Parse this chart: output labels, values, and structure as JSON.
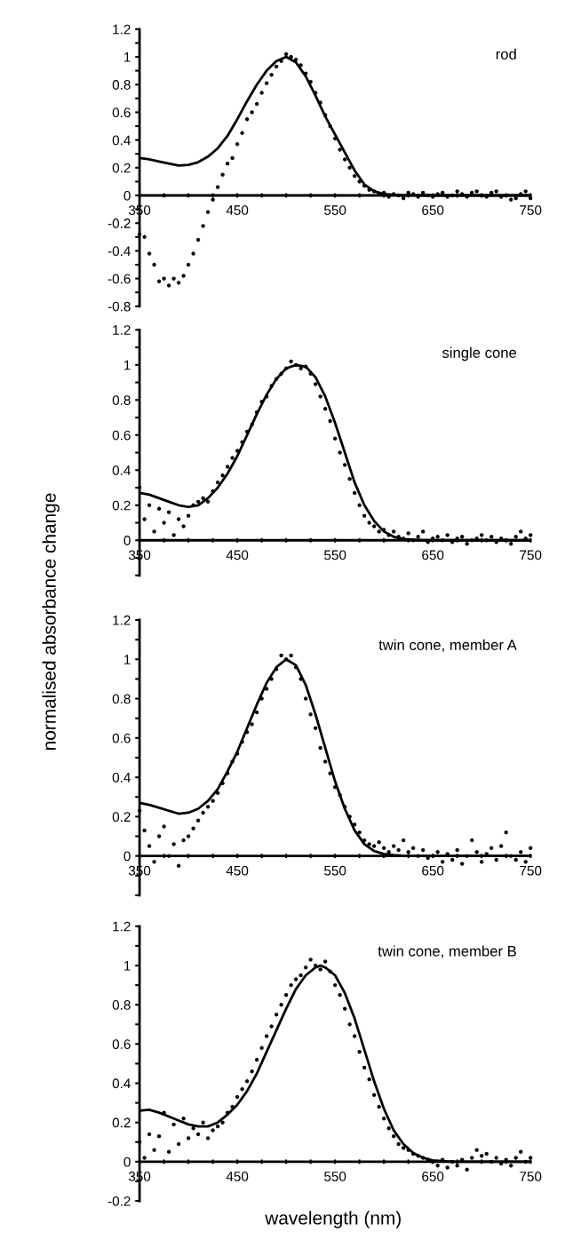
{
  "chart_data": [
    {
      "type": "scatter",
      "annotations": [
        "rod"
      ],
      "xlim": [
        350,
        750
      ],
      "ylim": [
        -0.8,
        1.2
      ],
      "xticks": [
        350,
        {
          "value": 375,
          "label": null
        },
        {
          "value": 400,
          "label": null
        },
        {
          "value": 425,
          "label": null
        },
        450,
        {
          "value": 475,
          "label": null
        },
        {
          "value": 500,
          "label": null
        },
        {
          "value": 525,
          "label": null
        },
        550,
        {
          "value": 575,
          "label": null
        },
        {
          "value": 600,
          "label": null
        },
        {
          "value": 625,
          "label": null
        },
        650,
        {
          "value": 675,
          "label": null
        },
        {
          "value": 700,
          "label": null
        },
        {
          "value": 725,
          "label": null
        },
        750
      ],
      "yticks": [
        -0.8,
        {
          "value": -0.7,
          "label": null
        },
        -0.6,
        {
          "value": -0.5,
          "label": null
        },
        -0.4,
        {
          "value": -0.3,
          "label": null
        },
        -0.2,
        {
          "value": -0.1,
          "label": null
        },
        0,
        {
          "value": 0.1,
          "label": null
        },
        0.2,
        {
          "value": 0.3,
          "label": null
        },
        0.4,
        {
          "value": 0.5,
          "label": null
        },
        0.6,
        {
          "value": 0.7,
          "label": null
        },
        0.8,
        {
          "value": 0.9,
          "label": null
        },
        1,
        {
          "value": 1.1,
          "label": null
        },
        1.2
      ],
      "series": [
        {
          "type": "scatter",
          "marker": "circle",
          "color": "#000000",
          "x": [
            350,
            355,
            360,
            365,
            370,
            375,
            380,
            385,
            390,
            395,
            400,
            405,
            410,
            415,
            420,
            425,
            430,
            435,
            440,
            445,
            450,
            455,
            460,
            465,
            470,
            475,
            480,
            485,
            490,
            495,
            500,
            505,
            510,
            515,
            520,
            525,
            530,
            535,
            540,
            545,
            550,
            555,
            560,
            565,
            570,
            575,
            580,
            585,
            590,
            595,
            600,
            605,
            610,
            615,
            620,
            625,
            630,
            635,
            640,
            645,
            650,
            655,
            660,
            665,
            670,
            675,
            680,
            685,
            690,
            695,
            700,
            705,
            710,
            715,
            720,
            725,
            730,
            735,
            740,
            745,
            750
          ],
          "values": [
            -0.28,
            -0.3,
            -0.42,
            -0.5,
            -0.62,
            -0.6,
            -0.65,
            -0.6,
            -0.63,
            -0.58,
            -0.5,
            -0.42,
            -0.32,
            -0.22,
            -0.12,
            -0.03,
            0.06,
            0.15,
            0.23,
            0.27,
            0.37,
            0.45,
            0.55,
            0.6,
            0.66,
            0.74,
            0.81,
            0.87,
            0.93,
            0.97,
            1.02,
            1.0,
            0.98,
            0.94,
            0.88,
            0.82,
            0.74,
            0.67,
            0.58,
            0.5,
            0.41,
            0.33,
            0.26,
            0.2,
            0.14,
            0.1,
            0.07,
            0.04,
            0.03,
            0.01,
            0.02,
            -0.01,
            0.01,
            0.0,
            -0.02,
            0.02,
            0.01,
            -0.01,
            0.02,
            0.0,
            -0.01,
            0.01,
            0.02,
            -0.01,
            0.0,
            0.03,
            0.01,
            -0.01,
            0.02,
            0.03,
            0.0,
            -0.01,
            0.02,
            0.03,
            -0.01,
            0.0,
            -0.03,
            -0.02,
            0.01,
            0.03,
            -0.02
          ]
        },
        {
          "type": "line",
          "color": "#000000",
          "x": [
            350,
            360,
            370,
            380,
            390,
            400,
            410,
            420,
            430,
            440,
            450,
            460,
            470,
            480,
            490,
            500,
            510,
            520,
            530,
            540,
            550,
            560,
            570,
            580,
            590,
            600,
            610,
            620,
            650,
            700,
            750
          ],
          "values": [
            0.27,
            0.26,
            0.245,
            0.23,
            0.215,
            0.22,
            0.24,
            0.28,
            0.34,
            0.43,
            0.55,
            0.68,
            0.8,
            0.9,
            0.97,
            1.0,
            0.96,
            0.86,
            0.72,
            0.57,
            0.44,
            0.31,
            0.18,
            0.08,
            0.03,
            0.01,
            0.004,
            0.001,
            0,
            0,
            0
          ]
        }
      ]
    },
    {
      "type": "scatter",
      "annotations": [
        "single cone"
      ],
      "xlim": [
        350,
        750
      ],
      "ylim": [
        -0.2,
        1.2
      ],
      "xticks": [
        350,
        {
          "value": 375,
          "label": null
        },
        {
          "value": 400,
          "label": null
        },
        {
          "value": 425,
          "label": null
        },
        450,
        {
          "value": 475,
          "label": null
        },
        {
          "value": 500,
          "label": null
        },
        {
          "value": 525,
          "label": null
        },
        550,
        {
          "value": 575,
          "label": null
        },
        {
          "value": 600,
          "label": null
        },
        {
          "value": 625,
          "label": null
        },
        650,
        {
          "value": 675,
          "label": null
        },
        {
          "value": 700,
          "label": null
        },
        {
          "value": 725,
          "label": null
        },
        750
      ],
      "yticks": [
        {
          "value": -0.2,
          "label": null
        },
        {
          "value": -0.1,
          "label": null
        },
        0,
        {
          "value": 0.1,
          "label": null
        },
        0.2,
        {
          "value": 0.3,
          "label": null
        },
        0.4,
        {
          "value": 0.5,
          "label": null
        },
        0.6,
        {
          "value": 0.7,
          "label": null
        },
        0.8,
        {
          "value": 0.9,
          "label": null
        },
        1,
        {
          "value": 1.1,
          "label": null
        },
        1.2
      ],
      "series": [
        {
          "type": "scatter",
          "marker": "circle",
          "color": "#000000",
          "x": [
            350,
            355,
            360,
            365,
            370,
            375,
            380,
            385,
            390,
            395,
            400,
            405,
            410,
            415,
            420,
            425,
            430,
            435,
            440,
            445,
            450,
            455,
            460,
            465,
            470,
            475,
            480,
            485,
            490,
            495,
            500,
            505,
            510,
            515,
            520,
            525,
            530,
            535,
            540,
            545,
            550,
            555,
            560,
            565,
            570,
            575,
            580,
            585,
            590,
            595,
            600,
            605,
            610,
            615,
            620,
            625,
            630,
            635,
            640,
            645,
            650,
            655,
            660,
            665,
            670,
            675,
            680,
            685,
            690,
            695,
            700,
            705,
            710,
            715,
            720,
            725,
            730,
            735,
            740,
            745,
            750
          ],
          "values": [
            0.3,
            0.12,
            0.2,
            0.05,
            0.18,
            0.1,
            0.16,
            0.03,
            0.12,
            0.08,
            0.14,
            0.2,
            0.22,
            0.24,
            0.22,
            0.28,
            0.33,
            0.37,
            0.42,
            0.47,
            0.51,
            0.56,
            0.62,
            0.66,
            0.73,
            0.79,
            0.82,
            0.88,
            0.92,
            0.95,
            0.98,
            1.02,
            1.0,
            0.98,
            0.99,
            0.95,
            0.89,
            0.82,
            0.75,
            0.68,
            0.58,
            0.5,
            0.43,
            0.35,
            0.27,
            0.2,
            0.14,
            0.1,
            0.08,
            0.05,
            0.06,
            0.03,
            0.05,
            0.02,
            0.01,
            0.04,
            0.0,
            0.02,
            0.05,
            -0.01,
            0.01,
            0.02,
            0.0,
            0.03,
            -0.01,
            0.01,
            0.02,
            -0.02,
            0.0,
            0.01,
            0.03,
            0.0,
            0.02,
            -0.01,
            0.01,
            0.0,
            -0.02,
            0.02,
            0.05,
            0.01,
            0.03
          ]
        },
        {
          "type": "line",
          "color": "#000000",
          "x": [
            350,
            360,
            370,
            380,
            390,
            400,
            410,
            420,
            430,
            440,
            450,
            460,
            470,
            480,
            490,
            500,
            510,
            520,
            530,
            540,
            550,
            560,
            570,
            580,
            590,
            600,
            610,
            620,
            640,
            700,
            750
          ],
          "values": [
            0.27,
            0.26,
            0.24,
            0.22,
            0.2,
            0.19,
            0.2,
            0.24,
            0.3,
            0.38,
            0.48,
            0.6,
            0.72,
            0.83,
            0.92,
            0.98,
            1.0,
            0.99,
            0.93,
            0.82,
            0.67,
            0.5,
            0.33,
            0.2,
            0.11,
            0.05,
            0.02,
            0.007,
            0,
            0,
            0
          ]
        }
      ]
    },
    {
      "type": "scatter",
      "ylabel": "normalised absorbance change",
      "annotations": [
        "twin cone, member A"
      ],
      "xlim": [
        350,
        750
      ],
      "ylim": [
        -0.2,
        1.2
      ],
      "xticks": [
        350,
        {
          "value": 375,
          "label": null
        },
        {
          "value": 400,
          "label": null
        },
        {
          "value": 425,
          "label": null
        },
        450,
        {
          "value": 475,
          "label": null
        },
        {
          "value": 500,
          "label": null
        },
        {
          "value": 525,
          "label": null
        },
        550,
        {
          "value": 575,
          "label": null
        },
        {
          "value": 600,
          "label": null
        },
        {
          "value": 625,
          "label": null
        },
        650,
        {
          "value": 675,
          "label": null
        },
        {
          "value": 700,
          "label": null
        },
        {
          "value": 725,
          "label": null
        },
        750
      ],
      "yticks": [
        {
          "value": -0.2,
          "label": null
        },
        {
          "value": -0.1,
          "label": null
        },
        0,
        {
          "value": 0.1,
          "label": null
        },
        0.2,
        {
          "value": 0.3,
          "label": null
        },
        0.4,
        {
          "value": 0.5,
          "label": null
        },
        0.6,
        {
          "value": 0.7,
          "label": null
        },
        0.8,
        {
          "value": 0.9,
          "label": null
        },
        1,
        {
          "value": 1.1,
          "label": null
        },
        1.2
      ],
      "series": [
        {
          "type": "scatter",
          "marker": "circle",
          "color": "#000000",
          "x": [
            350,
            355,
            360,
            365,
            370,
            375,
            380,
            385,
            390,
            395,
            400,
            405,
            410,
            415,
            420,
            425,
            430,
            435,
            440,
            445,
            450,
            455,
            460,
            465,
            470,
            475,
            480,
            485,
            490,
            495,
            500,
            505,
            510,
            515,
            520,
            525,
            530,
            535,
            540,
            545,
            550,
            555,
            560,
            565,
            570,
            575,
            580,
            585,
            590,
            595,
            600,
            605,
            610,
            615,
            620,
            625,
            630,
            635,
            640,
            645,
            650,
            655,
            660,
            665,
            670,
            675,
            680,
            685,
            690,
            695,
            700,
            705,
            710,
            715,
            720,
            725,
            730,
            735,
            740,
            745,
            750
          ],
          "values": [
            0.23,
            0.13,
            0.05,
            -0.03,
            0.1,
            0.15,
            0.0,
            0.06,
            -0.05,
            0.08,
            0.1,
            0.14,
            0.18,
            0.22,
            0.25,
            0.28,
            0.32,
            0.37,
            0.42,
            0.48,
            0.52,
            0.58,
            0.63,
            0.67,
            0.73,
            0.8,
            0.85,
            0.9,
            0.95,
            1.02,
            1.0,
            1.02,
            0.96,
            0.9,
            0.8,
            0.72,
            0.65,
            0.55,
            0.48,
            0.42,
            0.35,
            0.31,
            0.25,
            0.2,
            0.16,
            0.12,
            0.08,
            0.06,
            0.05,
            0.07,
            0.04,
            0.02,
            0.05,
            0.03,
            0.08,
            0.02,
            0.04,
            0.0,
            0.03,
            -0.01,
            0.0,
            0.02,
            -0.03,
            0.01,
            -0.02,
            0.03,
            -0.04,
            0.0,
            0.08,
            0.02,
            -0.03,
            0.01,
            0.04,
            -0.02,
            0.05,
            0.12,
            0.0,
            -0.02,
            0.02,
            -0.03,
            0.04
          ]
        },
        {
          "type": "line",
          "color": "#000000",
          "x": [
            350,
            360,
            370,
            380,
            390,
            400,
            410,
            420,
            430,
            440,
            450,
            460,
            470,
            480,
            490,
            500,
            510,
            520,
            530,
            540,
            550,
            560,
            570,
            580,
            590,
            600,
            610,
            620,
            650,
            700,
            750
          ],
          "values": [
            0.27,
            0.26,
            0.245,
            0.23,
            0.215,
            0.22,
            0.24,
            0.28,
            0.34,
            0.43,
            0.53,
            0.65,
            0.77,
            0.88,
            0.96,
            1.0,
            0.97,
            0.87,
            0.72,
            0.55,
            0.38,
            0.24,
            0.13,
            0.06,
            0.025,
            0.01,
            0.004,
            0.001,
            0,
            0,
            0
          ]
        }
      ]
    },
    {
      "type": "scatter",
      "xlabel": "wavelength (nm)",
      "annotations": [
        "twin cone, member B"
      ],
      "xlim": [
        350,
        750
      ],
      "ylim": [
        -0.2,
        1.2
      ],
      "xticks": [
        350,
        {
          "value": 375,
          "label": null
        },
        {
          "value": 400,
          "label": null
        },
        {
          "value": 425,
          "label": null
        },
        450,
        {
          "value": 475,
          "label": null
        },
        {
          "value": 500,
          "label": null
        },
        {
          "value": 525,
          "label": null
        },
        550,
        {
          "value": 575,
          "label": null
        },
        {
          "value": 600,
          "label": null
        },
        {
          "value": 625,
          "label": null
        },
        650,
        {
          "value": 675,
          "label": null
        },
        {
          "value": 700,
          "label": null
        },
        {
          "value": 725,
          "label": null
        },
        750
      ],
      "yticks": [
        -0.2,
        {
          "value": -0.1,
          "label": null
        },
        0,
        {
          "value": 0.1,
          "label": null
        },
        0.2,
        {
          "value": 0.3,
          "label": null
        },
        0.4,
        {
          "value": 0.5,
          "label": null
        },
        0.6,
        {
          "value": 0.7,
          "label": null
        },
        0.8,
        {
          "value": 0.9,
          "label": null
        },
        1,
        {
          "value": 1.1,
          "label": null
        },
        1.2
      ],
      "series": [
        {
          "type": "scatter",
          "marker": "circle",
          "color": "#000000",
          "x": [
            350,
            355,
            360,
            365,
            370,
            375,
            380,
            385,
            390,
            395,
            400,
            405,
            410,
            415,
            420,
            425,
            430,
            435,
            440,
            445,
            450,
            455,
            460,
            465,
            470,
            475,
            480,
            485,
            490,
            495,
            500,
            505,
            510,
            515,
            520,
            525,
            530,
            535,
            540,
            545,
            550,
            555,
            560,
            565,
            570,
            575,
            580,
            585,
            590,
            595,
            600,
            605,
            610,
            615,
            620,
            625,
            630,
            635,
            640,
            645,
            650,
            655,
            660,
            665,
            670,
            675,
            680,
            685,
            690,
            695,
            700,
            705,
            710,
            715,
            720,
            725,
            730,
            735,
            740,
            745,
            750
          ],
          "values": [
            0.1,
            0.02,
            0.14,
            0.06,
            0.13,
            0.25,
            0.05,
            0.19,
            0.09,
            0.22,
            0.12,
            0.17,
            0.14,
            0.2,
            0.12,
            0.16,
            0.18,
            0.2,
            0.25,
            0.28,
            0.33,
            0.37,
            0.41,
            0.46,
            0.52,
            0.58,
            0.64,
            0.69,
            0.75,
            0.8,
            0.85,
            0.9,
            0.93,
            0.95,
            0.99,
            1.03,
            1.0,
            0.98,
            1.02,
            0.97,
            0.9,
            0.85,
            0.78,
            0.7,
            0.64,
            0.56,
            0.48,
            0.42,
            0.34,
            0.28,
            0.22,
            0.17,
            0.13,
            0.09,
            0.07,
            0.06,
            0.04,
            0.03,
            0.02,
            0.01,
            0.0,
            -0.02,
            0.01,
            -0.03,
            0.0,
            -0.02,
            0.01,
            -0.04,
            0.02,
            0.06,
            0.03,
            0.04,
            0.0,
            0.02,
            -0.01,
            0.01,
            -0.02,
            0.02,
            0.05,
            0.0,
            0.02
          ]
        },
        {
          "type": "line",
          "color": "#000000",
          "x": [
            350,
            360,
            370,
            380,
            390,
            400,
            410,
            420,
            430,
            440,
            450,
            460,
            470,
            480,
            490,
            500,
            510,
            520,
            530,
            535,
            540,
            550,
            560,
            570,
            580,
            590,
            600,
            610,
            620,
            630,
            640,
            650,
            670,
            700,
            750
          ],
          "values": [
            0.26,
            0.265,
            0.25,
            0.23,
            0.21,
            0.19,
            0.18,
            0.18,
            0.2,
            0.24,
            0.29,
            0.36,
            0.45,
            0.56,
            0.67,
            0.78,
            0.88,
            0.95,
            0.99,
            1.0,
            0.99,
            0.95,
            0.86,
            0.73,
            0.57,
            0.41,
            0.27,
            0.16,
            0.09,
            0.045,
            0.02,
            0.007,
            0,
            0,
            0
          ]
        }
      ]
    }
  ]
}
